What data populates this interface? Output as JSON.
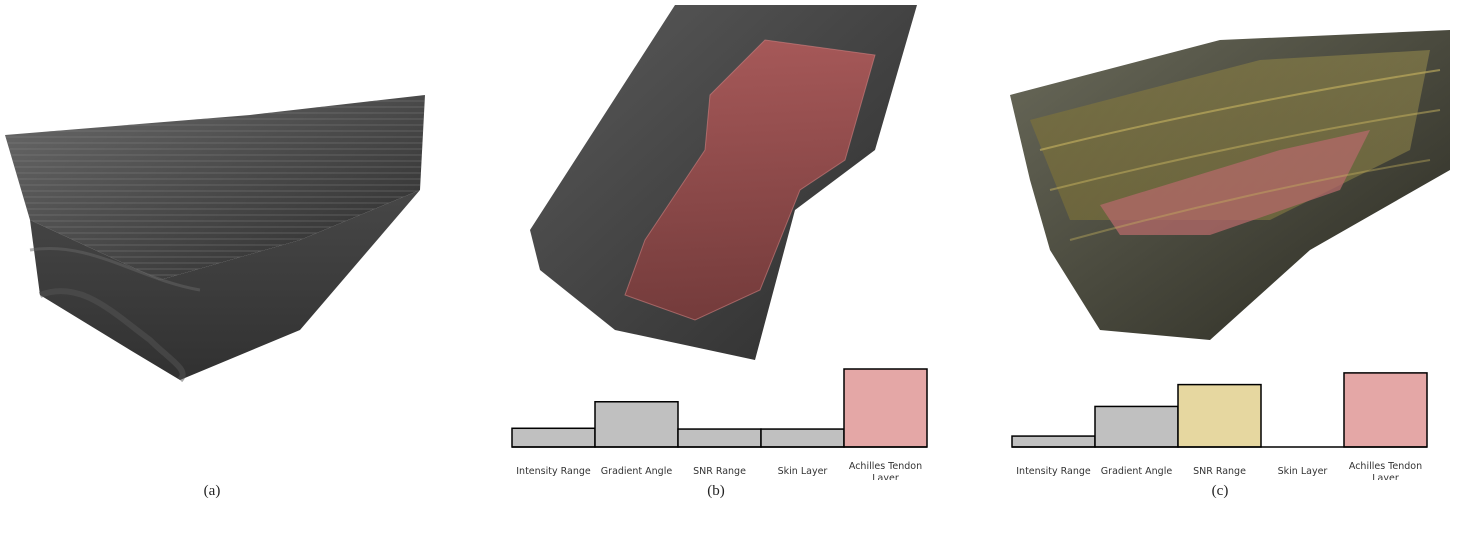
{
  "panels": [
    {
      "caption": "(a)"
    },
    {
      "caption": "(b)"
    },
    {
      "caption": "(c)"
    }
  ],
  "chart_data": [
    {
      "type": "bar",
      "categories": [
        "Intensity Range",
        "Gradient Angle",
        "SNR Range",
        "Skin Layer",
        "Achilles Tendon Layer"
      ],
      "values": [
        0.24,
        0.58,
        0.23,
        0.23,
        1.0
      ],
      "colors": [
        "#c0c0c0",
        "#c0c0c0",
        "#c0c0c0",
        "#c0c0c0",
        "#e4a7a6"
      ],
      "ylim": [
        0,
        1
      ]
    },
    {
      "type": "bar",
      "categories": [
        "Intensity Range",
        "Gradient Angle",
        "SNR Range",
        "Skin Layer",
        "Achilles Tendon Layer"
      ],
      "values": [
        0.14,
        0.52,
        0.8,
        0.0,
        0.95
      ],
      "colors": [
        "#c0c0c0",
        "#c0c0c0",
        "#e6d7a0",
        "#c0c0c0",
        "#e4a7a6"
      ],
      "ylim": [
        0,
        1
      ]
    }
  ]
}
